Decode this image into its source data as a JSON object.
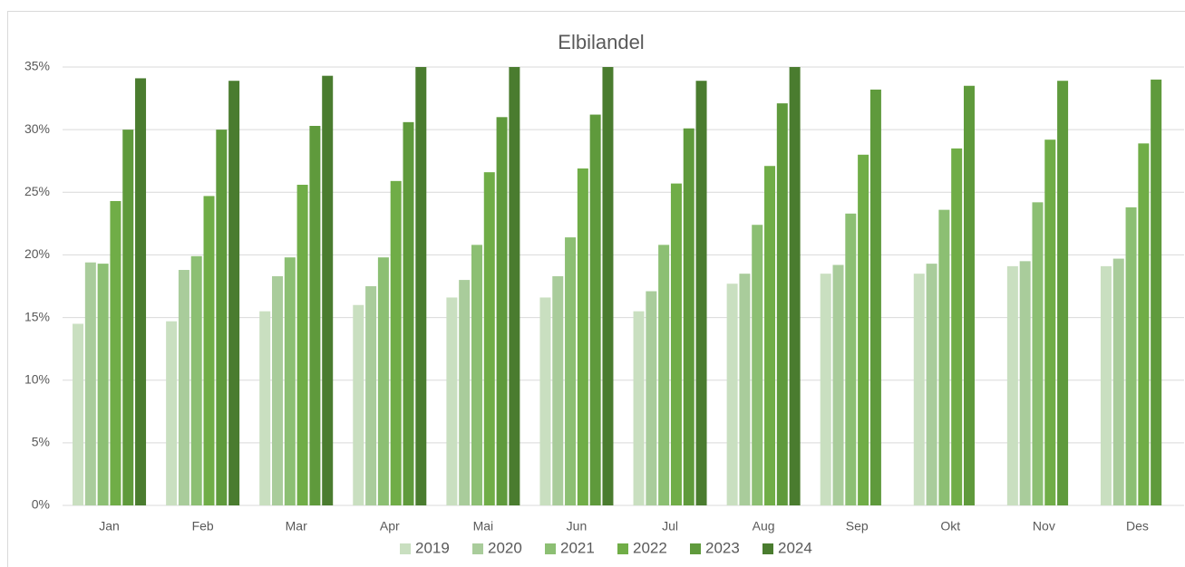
{
  "chart_data": {
    "type": "bar",
    "title": "Elbilandel",
    "categories": [
      "Jan",
      "Feb",
      "Mar",
      "Apr",
      "Mai",
      "Jun",
      "Jul",
      "Aug",
      "Sep",
      "Okt",
      "Nov",
      "Des"
    ],
    "series": [
      {
        "name": "2019",
        "color": "#c9dfc0",
        "values": [
          14.5,
          14.7,
          15.5,
          16.0,
          16.6,
          16.6,
          15.5,
          17.7,
          18.5,
          18.5,
          19.1,
          19.1
        ]
      },
      {
        "name": "2020",
        "color": "#a9cc9b",
        "values": [
          19.4,
          18.8,
          18.3,
          17.5,
          18.0,
          18.3,
          17.1,
          18.5,
          19.2,
          19.3,
          19.5,
          19.7
        ]
      },
      {
        "name": "2021",
        "color": "#8cbf73",
        "values": [
          19.3,
          19.9,
          19.8,
          19.8,
          20.8,
          21.4,
          20.8,
          22.4,
          23.3,
          23.6,
          24.2,
          23.8
        ]
      },
      {
        "name": "2022",
        "color": "#70ad47",
        "values": [
          24.3,
          24.7,
          25.6,
          25.9,
          26.6,
          26.9,
          25.7,
          27.1,
          28.0,
          28.5,
          29.2,
          28.9
        ]
      },
      {
        "name": "2023",
        "color": "#5f9a3c",
        "values": [
          30.0,
          30.0,
          30.3,
          30.6,
          31.0,
          31.2,
          30.1,
          32.1,
          33.2,
          33.5,
          33.9,
          34.0
        ]
      },
      {
        "name": "2024",
        "color": "#4a7c2f",
        "values": [
          34.1,
          33.9,
          34.3,
          35.0,
          35.0,
          35.0,
          33.9,
          35.0,
          null,
          null,
          null,
          null
        ]
      }
    ],
    "ylim": [
      0,
      35
    ],
    "yticks": [
      {
        "value": 0,
        "label": "0%"
      },
      {
        "value": 5,
        "label": "5%"
      },
      {
        "value": 10,
        "label": "10%"
      },
      {
        "value": 15,
        "label": "15%"
      },
      {
        "value": 20,
        "label": "20%"
      },
      {
        "value": 25,
        "label": "25%"
      },
      {
        "value": 30,
        "label": "30%"
      },
      {
        "value": 35,
        "label": "35%"
      }
    ],
    "grid": true,
    "legend": "bottom"
  }
}
